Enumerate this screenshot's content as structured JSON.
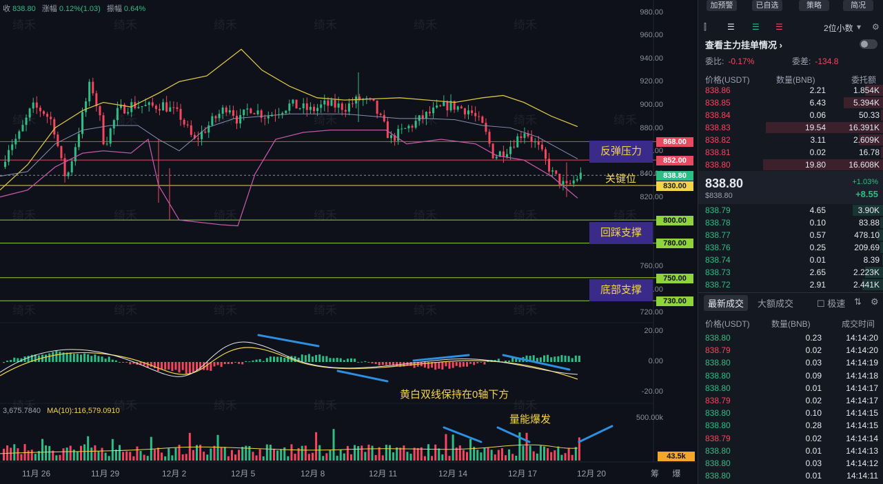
{
  "header": {
    "close_label": "收",
    "close_value": "838.80",
    "change_label": "涨幅",
    "change_value": "0.12%(1.03)",
    "amp_label": "振幅",
    "amp_value": "0.64%"
  },
  "watermark": "绮禾",
  "price_axis": [
    "980.00",
    "960.00",
    "940.00",
    "920.00",
    "900.00",
    "880.00",
    "860.00",
    "840.00",
    "820.00",
    "760.00",
    "740.00",
    "720.00"
  ],
  "macd_axis": [
    "20.00",
    "0.00",
    "-20.00"
  ],
  "vol_axis": [
    "500.00k"
  ],
  "x_labels": [
    "11月 26",
    "11月 29",
    "12月 2",
    "12月 5",
    "12月 8",
    "12月 11",
    "12月 14",
    "12月 17",
    "12月 20"
  ],
  "price_tags": [
    {
      "value": "868.00",
      "bg": "#e84a5f",
      "fg": "#ffffff"
    },
    {
      "value": "852.00",
      "bg": "#e84a5f",
      "fg": "#ffffff"
    },
    {
      "value": "838.80",
      "bg": "#2ebd85",
      "fg": "#ffffff"
    },
    {
      "value": "830.00",
      "bg": "#f4d54a",
      "fg": "#1a1a1a"
    },
    {
      "value": "800.00",
      "bg": "#8fd43a",
      "fg": "#0b0b0b"
    },
    {
      "value": "780.00",
      "bg": "#8fd43a",
      "fg": "#0b0b0b"
    },
    {
      "value": "750.00",
      "bg": "#8fd43a",
      "fg": "#0b0b0b"
    },
    {
      "value": "730.00",
      "bg": "#8fd43a",
      "fg": "#0b0b0b"
    }
  ],
  "zones": {
    "rebound": "反弹压力",
    "key": "关键位",
    "pullback": "回踩支撑",
    "bottom": "底部支撑"
  },
  "annotations": {
    "macd_note": "黄白双线保持在0轴下方",
    "volume_note": "量能爆发"
  },
  "volume": {
    "prefix": "3,675.7840",
    "ma_label": "MA(10):116,579.0910",
    "tag": "43.5k"
  },
  "toolbar_icons": "筹 爆",
  "colors": {
    "up": "#2ebd85",
    "down": "#f6465d",
    "accent": "#f4d54a",
    "zone": "#3a2a8a",
    "support": "#8fd43a",
    "resist": "#e84a5f"
  },
  "panel": {
    "top_buttons": [
      "加预警",
      "已自选",
      "策略",
      "简况"
    ],
    "precision": "2位小数",
    "title": "查看主力挂单情况",
    "wb_label": "委比:",
    "wb_value": "-0.17%",
    "wc_label": "委差:",
    "wc_value": "-134.8",
    "book_headers": [
      "价格(USDT)",
      "数量(BNB)",
      "委托额"
    ],
    "asks": [
      {
        "p": "838.86",
        "q": "2.21",
        "t": "1.854K",
        "w": 0.15
      },
      {
        "p": "838.85",
        "q": "6.43",
        "t": "5.394K",
        "w": 0.32
      },
      {
        "p": "838.84",
        "q": "0.06",
        "t": "50.33",
        "w": 0.02
      },
      {
        "p": "838.83",
        "q": "19.54",
        "t": "16.391K",
        "w": 0.95
      },
      {
        "p": "838.82",
        "q": "3.11",
        "t": "2.609K",
        "w": 0.2
      },
      {
        "p": "838.81",
        "q": "0.02",
        "t": "16.78",
        "w": 0.02
      },
      {
        "p": "838.80",
        "q": "19.80",
        "t": "16.608K",
        "w": 0.97
      }
    ],
    "last_price": "838.80",
    "last_sub": "$838.80",
    "last_pct": "+1.03%",
    "last_chg": "+8.55",
    "bids": [
      {
        "p": "838.79",
        "q": "4.65",
        "t": "3.90K",
        "w": 0.25
      },
      {
        "p": "838.78",
        "q": "0.10",
        "t": "83.88",
        "w": 0.03
      },
      {
        "p": "838.77",
        "q": "0.57",
        "t": "478.10",
        "w": 0.05
      },
      {
        "p": "838.76",
        "q": "0.25",
        "t": "209.69",
        "w": 0.03
      },
      {
        "p": "838.74",
        "q": "0.01",
        "t": "8.39",
        "w": 0.01
      },
      {
        "p": "838.73",
        "q": "2.65",
        "t": "2.223K",
        "w": 0.15
      },
      {
        "p": "838.72",
        "q": "2.91",
        "t": "2.441K",
        "w": 0.17
      }
    ],
    "tab_trades": "最新成交",
    "tab_large": "大额成交",
    "speed_label": "极速",
    "trade_headers": [
      "价格(USDT)",
      "数量(BNB)",
      "成交时间"
    ],
    "trades": [
      {
        "p": "838.80",
        "q": "0.23",
        "t": "14:14:20",
        "side": "up"
      },
      {
        "p": "838.79",
        "q": "0.02",
        "t": "14:14:20",
        "side": "down"
      },
      {
        "p": "838.80",
        "q": "0.03",
        "t": "14:14:19",
        "side": "up"
      },
      {
        "p": "838.80",
        "q": "0.09",
        "t": "14:14:18",
        "side": "up"
      },
      {
        "p": "838.80",
        "q": "0.01",
        "t": "14:14:17",
        "side": "up"
      },
      {
        "p": "838.79",
        "q": "0.02",
        "t": "14:14:17",
        "side": "down"
      },
      {
        "p": "838.80",
        "q": "0.10",
        "t": "14:14:15",
        "side": "up"
      },
      {
        "p": "838.80",
        "q": "0.28",
        "t": "14:14:15",
        "side": "up"
      },
      {
        "p": "838.79",
        "q": "0.02",
        "t": "14:14:14",
        "side": "down"
      },
      {
        "p": "838.80",
        "q": "0.01",
        "t": "14:14:13",
        "side": "up"
      },
      {
        "p": "838.80",
        "q": "0.03",
        "t": "14:14:12",
        "side": "up"
      },
      {
        "p": "838.80",
        "q": "0.01",
        "t": "14:14:11",
        "side": "up"
      }
    ]
  }
}
